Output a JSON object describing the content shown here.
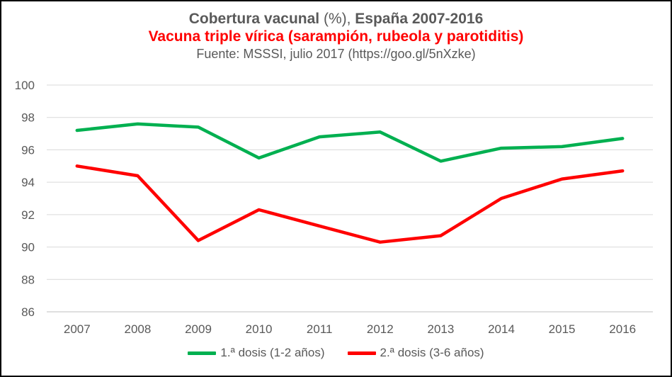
{
  "chart_data": {
    "type": "line",
    "title_part1": "Cobertura vacunal",
    "title_part2": " (%), ",
    "title_part3": "España 2007-2016",
    "subtitle": "Vacuna triple vírica (sarampión, rubeola y parotiditis)",
    "source": "Fuente: MSSSI, julio 2017 (https://goo.gl/5nXzke)",
    "categories": [
      "2007",
      "2008",
      "2009",
      "2010",
      "2011",
      "2012",
      "2013",
      "2014",
      "2015",
      "2016"
    ],
    "ylim": [
      86,
      100
    ],
    "yticks": [
      86,
      88,
      90,
      92,
      94,
      96,
      98,
      100
    ],
    "grid": true,
    "legend_position": "bottom",
    "series": [
      {
        "name": "1.ª dosis (1-2 años)",
        "color": "#00b050",
        "values": [
          97.2,
          97.6,
          97.4,
          95.5,
          96.8,
          97.1,
          95.3,
          96.1,
          96.2,
          96.7
        ]
      },
      {
        "name": "2.ª dosis (3-6 años)",
        "color": "#ff0000",
        "values": [
          95.0,
          94.4,
          90.4,
          92.3,
          91.3,
          90.3,
          90.7,
          93.0,
          94.2,
          94.7
        ]
      }
    ]
  }
}
